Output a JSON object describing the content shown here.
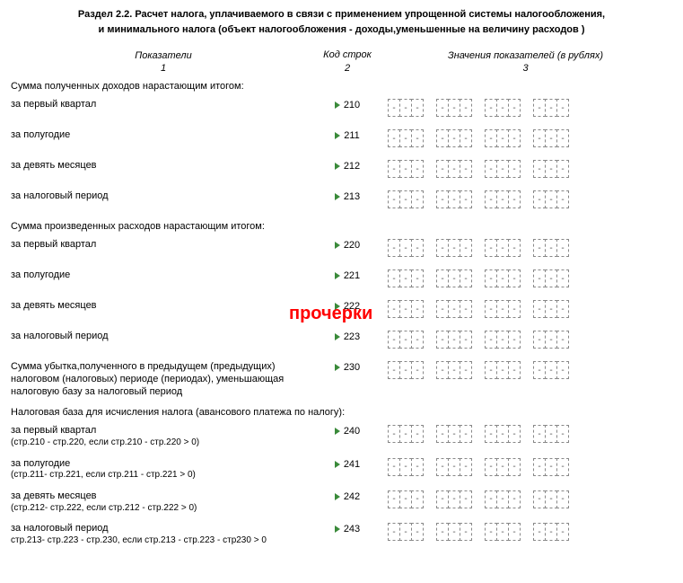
{
  "header": {
    "line1": "Раздел 2.2. Расчет налога, уплачиваемого в связи с применением упрощенной системы налогообложения,",
    "line2": "и минимального налога (объект налогообложения - доходы,уменьшенные на величину расходов )"
  },
  "columns": {
    "c1": "Показатели",
    "c2": "Код строк",
    "c3": "Значения показателей (в рублях)",
    "s1": "1",
    "s2": "2",
    "s3": "3"
  },
  "overlay": "прочерки",
  "cell_dash": "-",
  "groups": [
    3,
    3,
    3,
    3
  ],
  "sections": [
    {
      "title": "Сумма полученных доходов нарастающим итогом:",
      "rows": [
        {
          "label": "за первый квартал",
          "code": "210"
        },
        {
          "label": "за полугодие",
          "code": "211"
        },
        {
          "label": "за девять месяцев",
          "code": "212"
        },
        {
          "label": "за налоговый период",
          "code": "213"
        }
      ]
    },
    {
      "title": "Сумма произведенных расходов нарастающим итогом:",
      "rows": [
        {
          "label": "за первый квартал",
          "code": "220"
        },
        {
          "label": "за полугодие",
          "code": "221"
        },
        {
          "label": "за девять месяцев",
          "code": "222"
        },
        {
          "label": "за налоговый период",
          "code": "223"
        }
      ]
    },
    {
      "title": "",
      "rows": [
        {
          "label": "Сумма убытка,полученного в предыдущем (предыдущих) налоговом (налоговых) периоде (периодах), уменьшающая налоговую базу за налоговый период",
          "code": "230"
        }
      ]
    },
    {
      "title": "Налоговая база для исчисления налога (авансового платежа по налогу):",
      "rows": [
        {
          "label": "за первый квартал",
          "sub": "(стр.210 - стр.220, если стр.210 - стр.220 > 0)",
          "code": "240"
        },
        {
          "label": "за полугодие",
          "sub": "(стр.211- стр.221, если стр.211 - стр.221 > 0)",
          "code": "241"
        },
        {
          "label": "за девять месяцев",
          "sub": "(стр.212- стр.222, если стр.212 - стр.222 > 0)",
          "code": "242"
        },
        {
          "label": "за налоговый период",
          "sub": "стр.213- стр.223 - стр.230, если стр.213 - стр.223 - стр230 > 0",
          "code": "243"
        }
      ]
    }
  ]
}
